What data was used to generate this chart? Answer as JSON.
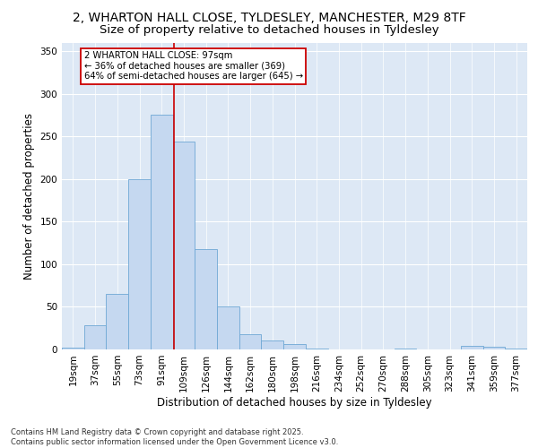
{
  "title_line1": "2, WHARTON HALL CLOSE, TYLDESLEY, MANCHESTER, M29 8TF",
  "title_line2": "Size of property relative to detached houses in Tyldesley",
  "xlabel": "Distribution of detached houses by size in Tyldesley",
  "ylabel": "Number of detached properties",
  "footnote": "Contains HM Land Registry data © Crown copyright and database right 2025.\nContains public sector information licensed under the Open Government Licence v3.0.",
  "bar_labels": [
    "19sqm",
    "37sqm",
    "55sqm",
    "73sqm",
    "91sqm",
    "109sqm",
    "126sqm",
    "144sqm",
    "162sqm",
    "180sqm",
    "198sqm",
    "216sqm",
    "234sqm",
    "252sqm",
    "270sqm",
    "288sqm",
    "305sqm",
    "323sqm",
    "341sqm",
    "359sqm",
    "377sqm"
  ],
  "bar_values": [
    2,
    28,
    65,
    200,
    275,
    244,
    118,
    50,
    18,
    10,
    6,
    1,
    0,
    0,
    0,
    1,
    0,
    0,
    4,
    3,
    1
  ],
  "bar_color": "#c5d8f0",
  "bar_edge_color": "#6fa8d5",
  "annotation_text": "2 WHARTON HALL CLOSE: 97sqm\n← 36% of detached houses are smaller (369)\n64% of semi-detached houses are larger (645) →",
  "annotation_box_color": "white",
  "annotation_box_edge_color": "#cc0000",
  "vline_color": "#cc0000",
  "vline_x": 4.55,
  "ylim": [
    0,
    360
  ],
  "yticks": [
    0,
    50,
    100,
    150,
    200,
    250,
    300,
    350
  ],
  "background_color": "#dde8f5",
  "grid_color": "white",
  "title_fontsize": 10,
  "subtitle_fontsize": 9.5,
  "axis_label_fontsize": 8.5,
  "tick_fontsize": 7.5,
  "footnote_fontsize": 6.0
}
